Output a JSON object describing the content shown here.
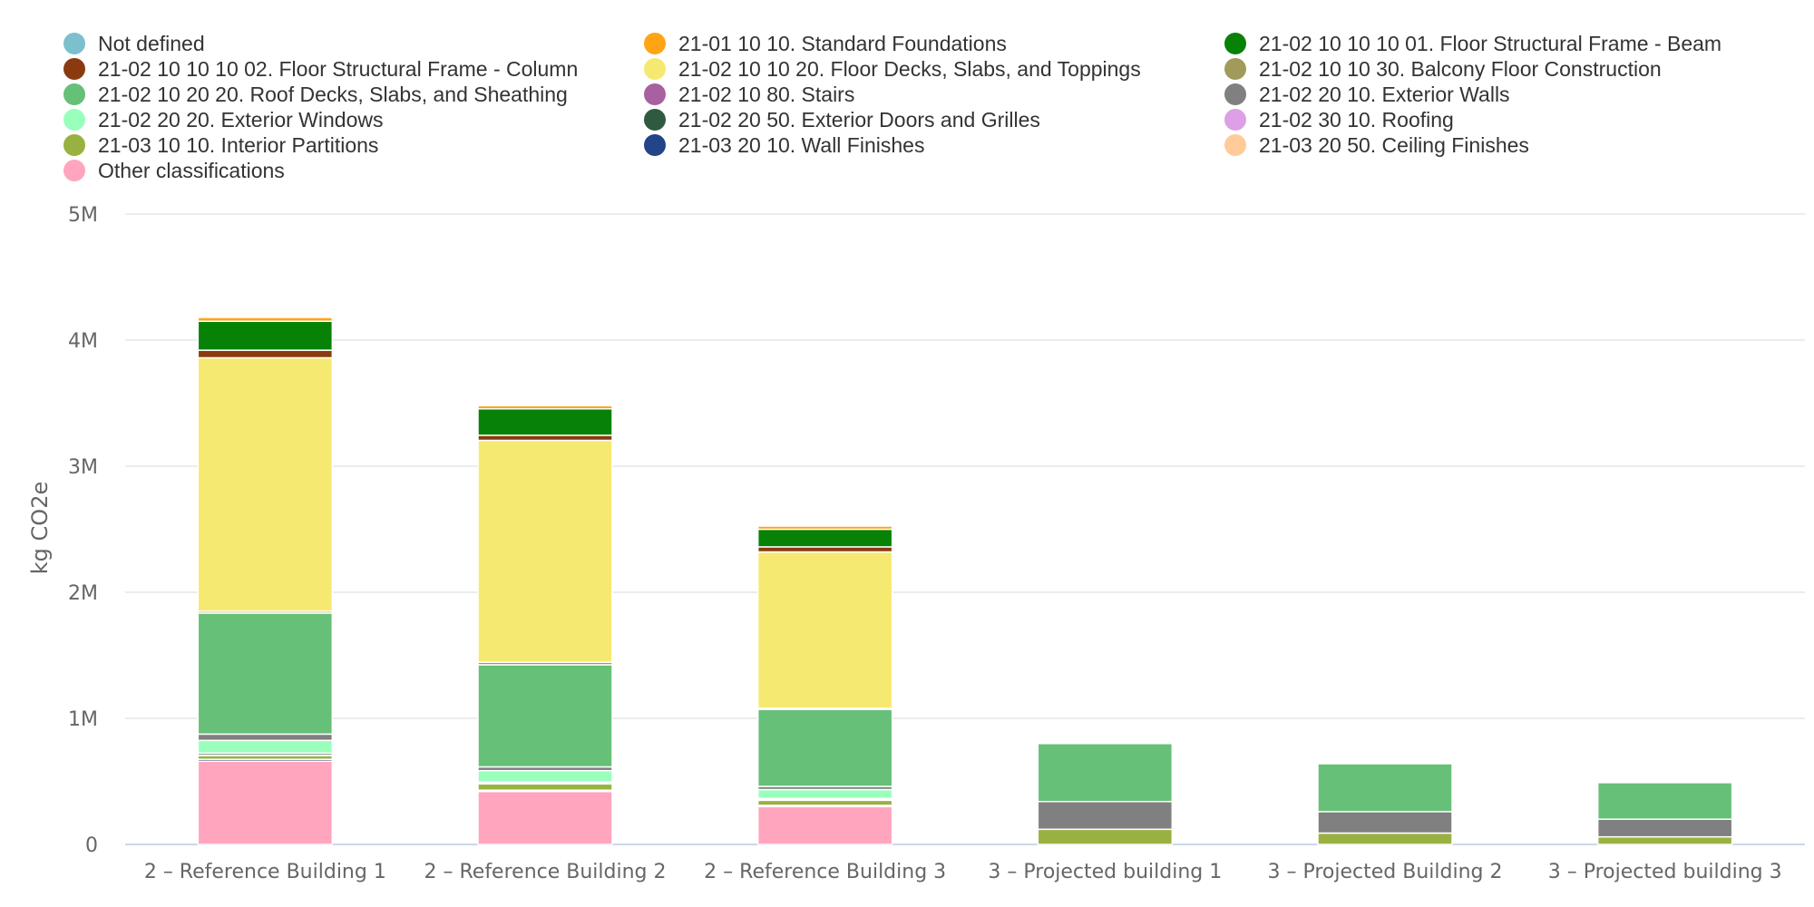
{
  "chart_data": {
    "type": "bar",
    "stacked": true,
    "ylabel": "kg CO2e",
    "ylim": [
      0,
      5000000
    ],
    "yticks": [
      0,
      1000000,
      2000000,
      3000000,
      4000000,
      5000000
    ],
    "ytick_labels": [
      "0",
      "1M",
      "2M",
      "3M",
      "4M",
      "5M"
    ],
    "grid": true,
    "legend_position": "top",
    "categories": [
      "2 – Reference Building 1",
      "2 – Reference Building 2",
      "2 – Reference Building 3",
      "3 – Projected building 1",
      "3 – Projected Building 2",
      "3 – Projected building 3"
    ],
    "series": [
      {
        "name": "Other classifications",
        "color": "#ffa6be",
        "values": [
          660000,
          420000,
          300000,
          0,
          0,
          0
        ]
      },
      {
        "name": "21-03 20 50. Ceiling Finishes",
        "color": "#ffcc99",
        "values": [
          0,
          0,
          0,
          0,
          0,
          0
        ]
      },
      {
        "name": "21-03 20 10. Wall Finishes",
        "color": "#224488",
        "values": [
          15000,
          10000,
          10000,
          0,
          0,
          0
        ]
      },
      {
        "name": "21-03 10 10. Interior Partitions",
        "color": "#99b140",
        "values": [
          30000,
          50000,
          40000,
          120000,
          90000,
          60000
        ]
      },
      {
        "name": "21-02 30 10. Roofing",
        "color": "#dda0e6",
        "values": [
          5000,
          5000,
          5000,
          0,
          0,
          0
        ]
      },
      {
        "name": "21-02 20 50. Exterior Doors and Grilles",
        "color": "#2f5a41",
        "values": [
          15000,
          10000,
          10000,
          0,
          0,
          0
        ]
      },
      {
        "name": "21-02 20 20. Exterior Windows",
        "color": "#99ffbb",
        "values": [
          100000,
          90000,
          70000,
          0,
          0,
          0
        ]
      },
      {
        "name": "21-02 20 10. Exterior Walls",
        "color": "#808080",
        "values": [
          50000,
          30000,
          25000,
          220000,
          170000,
          140000
        ]
      },
      {
        "name": "21-02 10 80. Stairs",
        "color": "#a860a0",
        "values": [
          0,
          0,
          0,
          0,
          0,
          0
        ]
      },
      {
        "name": "21-02 10 20 20. Roof Decks, Slabs, and Sheathing",
        "color": "#66c077",
        "values": [
          960000,
          810000,
          610000,
          460000,
          380000,
          290000
        ]
      },
      {
        "name": "21-02 10 10 30. Balcony Floor Construction",
        "color": "#a09b5a",
        "values": [
          15000,
          20000,
          10000,
          0,
          0,
          0
        ]
      },
      {
        "name": "21-02 10 10 20. Floor Decks, Slabs, and Toppings",
        "color": "#f5e971",
        "values": [
          2010000,
          1760000,
          1240000,
          0,
          0,
          0
        ]
      },
      {
        "name": "21-02 10 10 10 02. Floor Structural Frame - Column",
        "color": "#8b3a10",
        "values": [
          60000,
          40000,
          40000,
          0,
          0,
          0
        ]
      },
      {
        "name": "21-02 10 10 10 01. Floor Structural Frame - Beam",
        "color": "#078207",
        "values": [
          230000,
          210000,
          140000,
          0,
          0,
          0
        ]
      },
      {
        "name": "21-01 10 10. Standard Foundations",
        "color": "#ffa514",
        "values": [
          30000,
          25000,
          25000,
          0,
          0,
          0
        ]
      },
      {
        "name": "Not defined",
        "color": "#7cc0ce",
        "values": [
          0,
          0,
          0,
          0,
          0,
          0
        ]
      }
    ]
  },
  "legend": {
    "items": [
      {
        "label": "Not defined",
        "color": "#7cc0ce"
      },
      {
        "label": "21-01 10 10. Standard Foundations",
        "color": "#ffa514"
      },
      {
        "label": "21-02 10 10 10 01. Floor Structural Frame - Beam",
        "color": "#078207"
      },
      {
        "label": "21-02 10 10 10 02. Floor Structural Frame - Column",
        "color": "#8b3a10"
      },
      {
        "label": "21-02 10 10 20. Floor Decks, Slabs, and Toppings",
        "color": "#f5e971"
      },
      {
        "label": "21-02 10 10 30. Balcony Floor Construction",
        "color": "#a09b5a"
      },
      {
        "label": "21-02 10 20 20. Roof Decks, Slabs, and Sheathing",
        "color": "#66c077"
      },
      {
        "label": "21-02 10 80. Stairs",
        "color": "#a860a0"
      },
      {
        "label": "21-02 20 10. Exterior Walls",
        "color": "#808080"
      },
      {
        "label": "21-02 20 20. Exterior Windows",
        "color": "#99ffbb"
      },
      {
        "label": "21-02 20 50. Exterior Doors and Grilles",
        "color": "#2f5a41"
      },
      {
        "label": "21-02 30 10. Roofing",
        "color": "#dda0e6"
      },
      {
        "label": "21-03 10 10. Interior Partitions",
        "color": "#99b140"
      },
      {
        "label": "21-03 20 10. Wall Finishes",
        "color": "#224488"
      },
      {
        "label": "21-03 20 50. Ceiling Finishes",
        "color": "#ffcc99"
      },
      {
        "label": "Other classifications",
        "color": "#ffa6be"
      }
    ]
  }
}
